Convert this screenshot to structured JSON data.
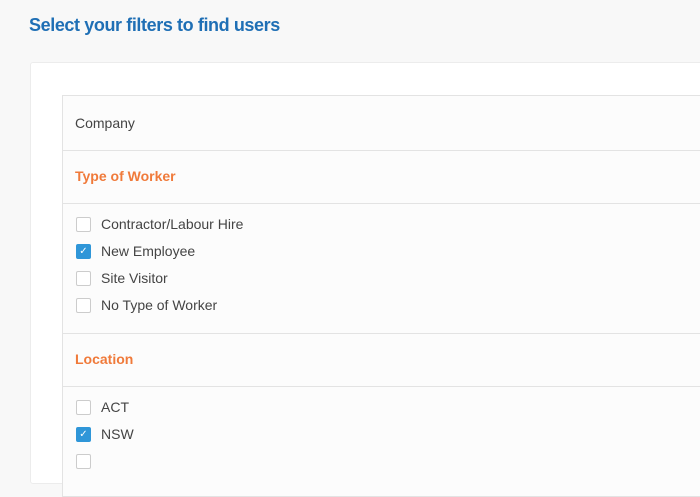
{
  "title": "Select your filters to find users",
  "sections": {
    "company": "Company",
    "type_of_worker": {
      "label": "Type of Worker",
      "items": [
        {
          "label": "Contractor/Labour Hire",
          "checked": false
        },
        {
          "label": "New Employee",
          "checked": true
        },
        {
          "label": "Site Visitor",
          "checked": false
        },
        {
          "label": "No Type of Worker",
          "checked": false
        }
      ]
    },
    "location": {
      "label": "Location",
      "items": [
        {
          "label": "ACT",
          "checked": true
        },
        {
          "label": "NSW",
          "checked": true
        }
      ]
    }
  },
  "check_glyph": "✓",
  "colors": {
    "title": "#1f6fb5",
    "section_heading": "#f07a3a",
    "checkbox_checked": "#2f96d8"
  }
}
